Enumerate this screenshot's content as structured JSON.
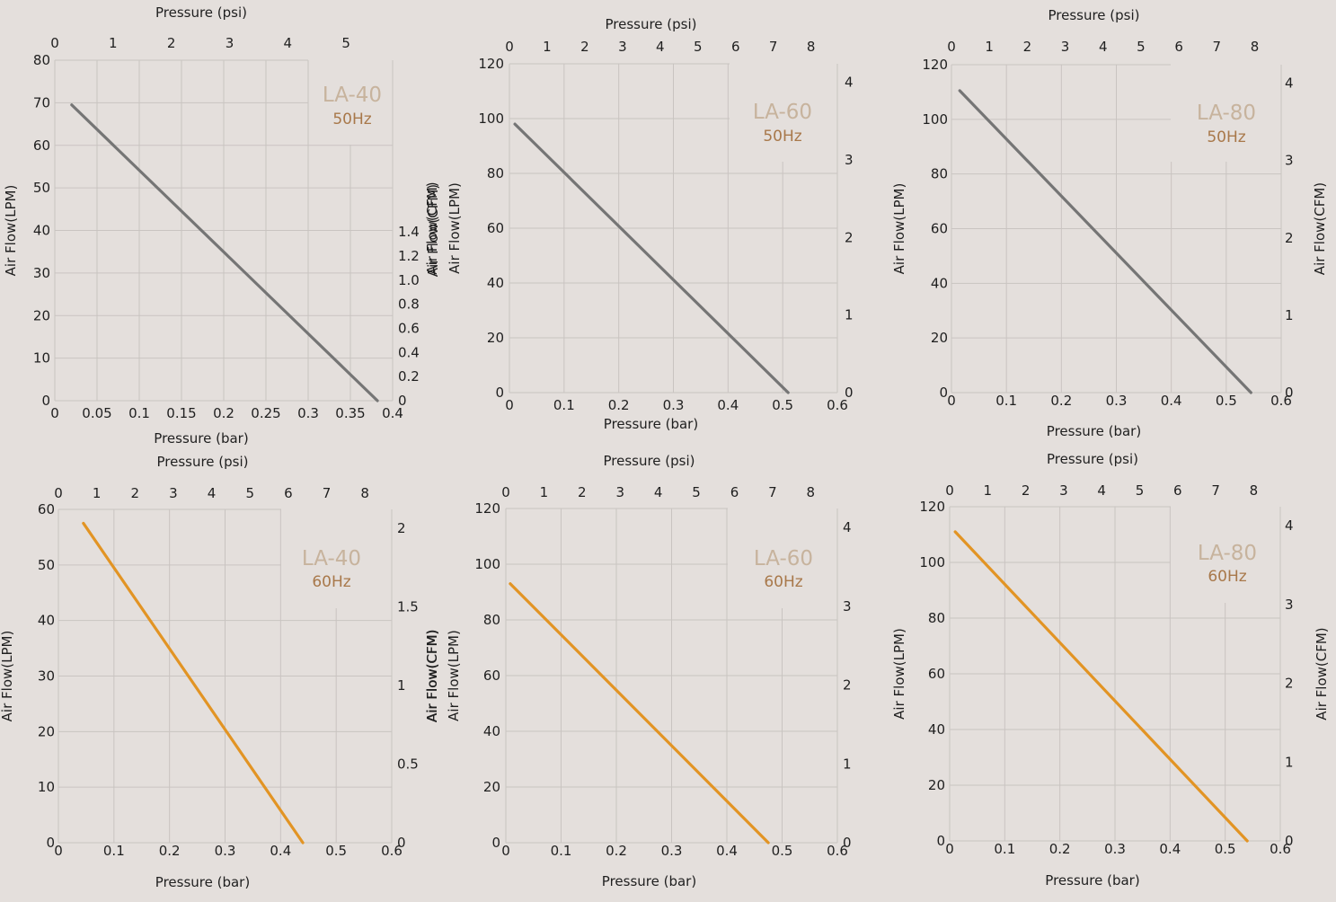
{
  "chart_data": [
    {
      "type": "line",
      "title": "LA-40",
      "subtitle": "50Hz",
      "xlabel": "Pressure (bar)",
      "x2label": "Pressure (psi)",
      "ylabel": "Air Flow(LPM)",
      "y2label": "Air Flow(CFM)",
      "xlim": [
        0,
        0.4
      ],
      "xticks": [
        0,
        0.05,
        0.1,
        0.15,
        0.2,
        0.25,
        0.3,
        0.35,
        0.4
      ],
      "xticklabels": [
        "0",
        "0.05",
        "0.1",
        "0.15",
        "0.2",
        "0.25",
        "0.3",
        "0.35",
        "0.4"
      ],
      "x2lim": [
        0,
        5.8
      ],
      "x2ticks": [
        0,
        1,
        2,
        3,
        4,
        5
      ],
      "x2ticklabels": [
        "0",
        "1",
        "2",
        "3",
        "4",
        "5"
      ],
      "ylim": [
        0,
        80
      ],
      "yticks": [
        0,
        10,
        20,
        30,
        40,
        50,
        60,
        70,
        80
      ],
      "yticklabels": [
        "0",
        "10",
        "20",
        "30",
        "40",
        "50",
        "60",
        "70",
        "80"
      ],
      "y2lim": [
        0,
        2.825
      ],
      "y2ticks": [
        0,
        0.2,
        0.4,
        0.6,
        0.8,
        1.0,
        1.2,
        1.4
      ],
      "y2ticklabels": [
        "0",
        "0.2",
        "0.4",
        "0.6",
        "0.8",
        "1.0",
        "1.2",
        "1.4"
      ],
      "grid": true,
      "line_color": "#757575",
      "x": [
        0.02,
        0.382
      ],
      "y": [
        69.5,
        0
      ]
    },
    {
      "type": "line",
      "title": "LA-60",
      "subtitle": "50Hz",
      "xlabel": "Pressure (bar)",
      "x2label": "Pressure (psi)",
      "ylabel": "Air Flow(LPM)",
      "y2label": "Air Flow(CFM)",
      "xlim": [
        0,
        0.6
      ],
      "xticks": [
        0,
        0.1,
        0.2,
        0.3,
        0.4,
        0.5,
        0.6
      ],
      "xticklabels": [
        "0",
        "0.1",
        "0.2",
        "0.3",
        "0.4",
        "0.5",
        "0.6"
      ],
      "x2lim": [
        0,
        8.7
      ],
      "x2ticks": [
        0,
        1,
        2,
        3,
        4,
        5,
        6,
        7,
        8
      ],
      "x2ticklabels": [
        "0",
        "1",
        "2",
        "3",
        "4",
        "5",
        "6",
        "7",
        "8"
      ],
      "ylim": [
        0,
        120
      ],
      "yticks": [
        0,
        20,
        40,
        60,
        80,
        100,
        120
      ],
      "yticklabels": [
        "0",
        "20",
        "40",
        "60",
        "80",
        "100",
        "120"
      ],
      "y2lim": [
        0,
        4.24
      ],
      "y2ticks": [
        0,
        1,
        2,
        3,
        4
      ],
      "y2ticklabels": [
        "0",
        "1",
        "2",
        "3",
        "4"
      ],
      "grid": true,
      "line_color": "#757575",
      "x": [
        0.01,
        0.51
      ],
      "y": [
        98,
        0
      ]
    },
    {
      "type": "line",
      "title": "LA-80",
      "subtitle": "50Hz",
      "xlabel": "Pressure (bar)",
      "x2label": "Pressure (psi)",
      "ylabel": "Air Flow(LPM)",
      "y2label": "Air Flow(CFM)",
      "xlim": [
        0,
        0.6
      ],
      "xticks": [
        0,
        0.1,
        0.2,
        0.3,
        0.4,
        0.5,
        0.6
      ],
      "xticklabels": [
        "0",
        "0.1",
        "0.2",
        "0.3",
        "0.4",
        "0.5",
        "0.6"
      ],
      "x2lim": [
        0,
        8.7
      ],
      "x2ticks": [
        0,
        1,
        2,
        3,
        4,
        5,
        6,
        7,
        8
      ],
      "x2ticklabels": [
        "0",
        "1",
        "2",
        "3",
        "4",
        "5",
        "6",
        "7",
        "8"
      ],
      "ylim": [
        0,
        120
      ],
      "yticks": [
        0,
        20,
        40,
        60,
        80,
        100,
        120
      ],
      "yticklabels": [
        "0",
        "20",
        "40",
        "60",
        "80",
        "100",
        "120"
      ],
      "y2lim": [
        0,
        4.24
      ],
      "y2ticks": [
        0,
        1,
        2,
        3,
        4
      ],
      "y2ticklabels": [
        "0",
        "1",
        "2",
        "3",
        "4"
      ],
      "grid": true,
      "line_color": "#757575",
      "x": [
        0.015,
        0.545
      ],
      "y": [
        110.5,
        0
      ]
    },
    {
      "type": "line",
      "title": "LA-40",
      "subtitle": "60Hz",
      "xlabel": "Pressure (bar)",
      "x2label": "Pressure (psi)",
      "ylabel": "Air Flow(LPM)",
      "y2label": "Air Flow(CFM)",
      "xlim": [
        0,
        0.6
      ],
      "xticks": [
        0,
        0.1,
        0.2,
        0.3,
        0.4,
        0.5,
        0.6
      ],
      "xticklabels": [
        "0",
        "0.1",
        "0.2",
        "0.3",
        "0.4",
        "0.5",
        "0.6"
      ],
      "x2lim": [
        0,
        8.7
      ],
      "x2ticks": [
        0,
        1,
        2,
        3,
        4,
        5,
        6,
        7,
        8
      ],
      "x2ticklabels": [
        "0",
        "1",
        "2",
        "3",
        "4",
        "5",
        "6",
        "7",
        "8"
      ],
      "ylim": [
        0,
        60
      ],
      "yticks": [
        0,
        10,
        20,
        30,
        40,
        50,
        60
      ],
      "yticklabels": [
        "0",
        "10",
        "20",
        "30",
        "40",
        "50",
        "60"
      ],
      "y2lim": [
        0,
        2.12
      ],
      "y2ticks": [
        0,
        0.5,
        1,
        1.5,
        2
      ],
      "y2ticklabels": [
        "0",
        "0.5",
        "1",
        "1.5",
        "2"
      ],
      "grid": true,
      "line_color": "#e29424",
      "x": [
        0.045,
        0.44
      ],
      "y": [
        57.5,
        0
      ]
    },
    {
      "type": "line",
      "title": "LA-60",
      "subtitle": "60Hz",
      "xlabel": "Pressure (bar)",
      "x2label": "Pressure (psi)",
      "ylabel": "Air Flow(LPM)",
      "y2label": "Air Flow(CFM)",
      "xlim": [
        0,
        0.6
      ],
      "xticks": [
        0,
        0.1,
        0.2,
        0.3,
        0.4,
        0.5,
        0.6
      ],
      "xticklabels": [
        "0",
        "0.1",
        "0.2",
        "0.3",
        "0.4",
        "0.5",
        "0.6"
      ],
      "x2lim": [
        0,
        8.7
      ],
      "x2ticks": [
        0,
        1,
        2,
        3,
        4,
        5,
        6,
        7,
        8
      ],
      "x2ticklabels": [
        "0",
        "1",
        "2",
        "3",
        "4",
        "5",
        "6",
        "7",
        "8"
      ],
      "ylim": [
        0,
        120
      ],
      "yticks": [
        0,
        20,
        40,
        60,
        80,
        100,
        120
      ],
      "yticklabels": [
        "0",
        "20",
        "40",
        "60",
        "80",
        "100",
        "120"
      ],
      "y2lim": [
        0,
        4.24
      ],
      "y2ticks": [
        0,
        1,
        2,
        3,
        4
      ],
      "y2ticklabels": [
        "0",
        "1",
        "2",
        "3",
        "4"
      ],
      "grid": true,
      "line_color": "#e29424",
      "x": [
        0.008,
        0.475
      ],
      "y": [
        93,
        0
      ]
    },
    {
      "type": "line",
      "title": "LA-80",
      "subtitle": "60Hz",
      "xlabel": "Pressure (bar)",
      "x2label": "Pressure (psi)",
      "ylabel": "Air Flow(LPM)",
      "y2label": "Air Flow(CFM)",
      "xlim": [
        0,
        0.6
      ],
      "xticks": [
        0,
        0.1,
        0.2,
        0.3,
        0.4,
        0.5,
        0.6
      ],
      "xticklabels": [
        "0",
        "0.1",
        "0.2",
        "0.3",
        "0.4",
        "0.5",
        "0.6"
      ],
      "x2lim": [
        0,
        8.7
      ],
      "x2ticks": [
        0,
        1,
        2,
        3,
        4,
        5,
        6,
        7,
        8
      ],
      "x2ticklabels": [
        "0",
        "1",
        "2",
        "3",
        "4",
        "5",
        "6",
        "7",
        "8"
      ],
      "ylim": [
        0,
        120
      ],
      "yticks": [
        0,
        20,
        40,
        60,
        80,
        100,
        120
      ],
      "yticklabels": [
        "0",
        "20",
        "40",
        "60",
        "80",
        "100",
        "120"
      ],
      "y2lim": [
        0,
        4.24
      ],
      "y2ticks": [
        0,
        1,
        2,
        3,
        4
      ],
      "y2ticklabels": [
        "0",
        "1",
        "2",
        "3",
        "4"
      ],
      "grid": true,
      "line_color": "#e29424",
      "x": [
        0.01,
        0.54
      ],
      "y": [
        111,
        0
      ]
    }
  ],
  "colors": {
    "background": "#e4dfdc",
    "grid": "#c9c4c1",
    "text": "#1f1f1f",
    "model_label": "#c7b39d",
    "freq_label": "#a8784a",
    "line_50hz": "#757575",
    "line_60hz": "#e29424"
  }
}
